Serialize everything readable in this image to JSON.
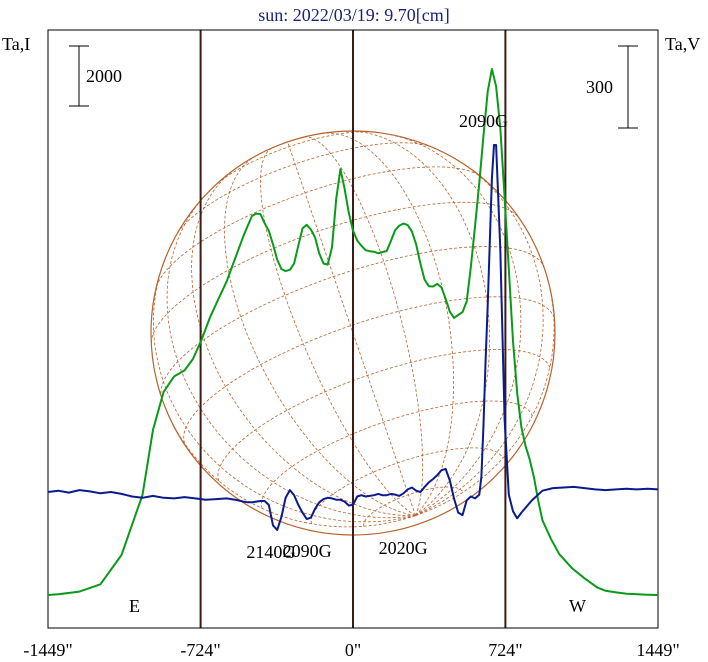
{
  "chart_data": {
    "type": "line",
    "title": "sun: 2022/03/19: 9.70[cm]",
    "left_axis_label": "Ta,I",
    "right_axis_label": "Ta,V",
    "left_scale_bar": "2000",
    "right_scale_bar": "300",
    "x_ticks": [
      "-1449\"",
      "-724\"",
      "0\"",
      "724\"",
      "1449\""
    ],
    "x_tick_values": [
      -1449,
      -724,
      0,
      724,
      1449
    ],
    "xlim": [
      -1449,
      1449
    ],
    "limb_labels": {
      "east": "E",
      "west": "W"
    },
    "vertical_markers": [
      -724,
      0,
      724
    ],
    "source_labels": [
      {
        "text": "2090G",
        "x": 620
      },
      {
        "text": "2140G",
        "x": -390
      },
      {
        "text": "2090G",
        "x": -218
      },
      {
        "text": "2020G",
        "x": 238
      }
    ],
    "grid": false,
    "series": [
      {
        "colour": "#0a9a1a",
        "x": [
          -1449,
          -1400,
          -1300,
          -1200,
          -1100,
          -1000,
          -950,
          -900,
          -850,
          -800,
          -760,
          -720,
          -680,
          -640,
          -600,
          -560,
          -520,
          -500,
          -480,
          -460,
          -440,
          -420,
          -400,
          -380,
          -360,
          -340,
          -320,
          -300,
          -280,
          -260,
          -240,
          -220,
          -200,
          -180,
          -160,
          -140,
          -120,
          -100,
          -80,
          -60,
          -40,
          -20,
          0,
          20,
          40,
          60,
          80,
          100,
          120,
          140,
          160,
          180,
          200,
          220,
          240,
          260,
          280,
          300,
          320,
          340,
          360,
          380,
          400,
          420,
          440,
          460,
          480,
          500,
          520,
          540,
          560,
          580,
          600,
          620,
          640,
          660,
          680,
          700,
          720,
          740,
          760,
          780,
          800,
          820,
          840,
          860,
          880,
          900,
          940,
          980,
          1040,
          1100,
          1160,
          1200,
          1250,
          1300,
          1350,
          1400,
          1449
        ],
        "values": [
          0,
          3,
          13,
          41,
          153,
          383,
          632,
          777,
          836,
          859,
          903,
          975,
          1061,
          1131,
          1200,
          1287,
          1374,
          1413,
          1450,
          1459,
          1457,
          1422,
          1393,
          1341,
          1283,
          1247,
          1239,
          1244,
          1268,
          1336,
          1402,
          1416,
          1398,
          1367,
          1306,
          1268,
          1264,
          1330,
          1514,
          1629,
          1554,
          1462,
          1394,
          1356,
          1336,
          1319,
          1315,
          1313,
          1307,
          1312,
          1316,
          1354,
          1395,
          1413,
          1421,
          1415,
          1390,
          1342,
          1268,
          1206,
          1181,
          1180,
          1190,
          1177,
          1133,
          1084,
          1060,
          1071,
          1082,
          1123,
          1257,
          1413,
          1576,
          1758,
          1925,
          2012,
          1946,
          1787,
          1522,
          1247,
          971,
          772,
          642,
          569,
          517,
          449,
          361,
          286,
          215,
          156,
          103,
          64,
          29,
          16,
          10,
          5,
          3,
          1,
          0
        ]
      },
      {
        "colour": "#0a1a8f",
        "x": [
          -1449,
          -1400,
          -1350,
          -1300,
          -1250,
          -1200,
          -1150,
          -1100,
          -1050,
          -1000,
          -950,
          -900,
          -850,
          -800,
          -750,
          -700,
          -650,
          -600,
          -560,
          -520,
          -500,
          -480,
          -460,
          -440,
          -420,
          -400,
          -380,
          -360,
          -340,
          -320,
          -300,
          -280,
          -260,
          -240,
          -220,
          -200,
          -180,
          -160,
          -140,
          -120,
          -100,
          -80,
          -60,
          -40,
          -20,
          0,
          20,
          40,
          60,
          80,
          100,
          120,
          140,
          160,
          180,
          200,
          220,
          240,
          260,
          280,
          300,
          320,
          340,
          360,
          380,
          400,
          420,
          440,
          460,
          480,
          500,
          520,
          540,
          560,
          580,
          600,
          610,
          620,
          630,
          640,
          650,
          660,
          670,
          680,
          700,
          720,
          740,
          760,
          780,
          800,
          850,
          900,
          950,
          1000,
          1050,
          1100,
          1150,
          1200,
          1250,
          1300,
          1350,
          1400,
          1449
        ],
        "values": [
          0,
          2,
          -1,
          3,
          1,
          -2,
          0,
          -3,
          -7,
          -9,
          -6,
          -9,
          -10,
          -8,
          -10,
          -12,
          -11,
          -10,
          -12,
          -15,
          -16,
          -16,
          -15,
          -14,
          -14,
          -20,
          -52,
          -59,
          -39,
          -9,
          3,
          -5,
          -20,
          -32,
          -42,
          -40,
          -26,
          -16,
          -11,
          -9,
          -10,
          -12,
          -12,
          -15,
          -21,
          -20,
          -7,
          -5,
          -7,
          -6,
          -5,
          -3,
          -5,
          -5,
          -3,
          -4,
          -6,
          -2,
          4,
          7,
          2,
          0,
          8,
          15,
          20,
          26,
          34,
          36,
          18,
          -10,
          -32,
          -36,
          -13,
          -7,
          -10,
          -4,
          24,
          105,
          205,
          290,
          389,
          488,
          540,
          540,
          378,
          113,
          -4,
          -30,
          -41,
          -32,
          -13,
          2,
          6,
          7,
          8,
          6,
          4,
          3,
          4,
          5,
          4,
          5,
          4
        ]
      }
    ]
  }
}
